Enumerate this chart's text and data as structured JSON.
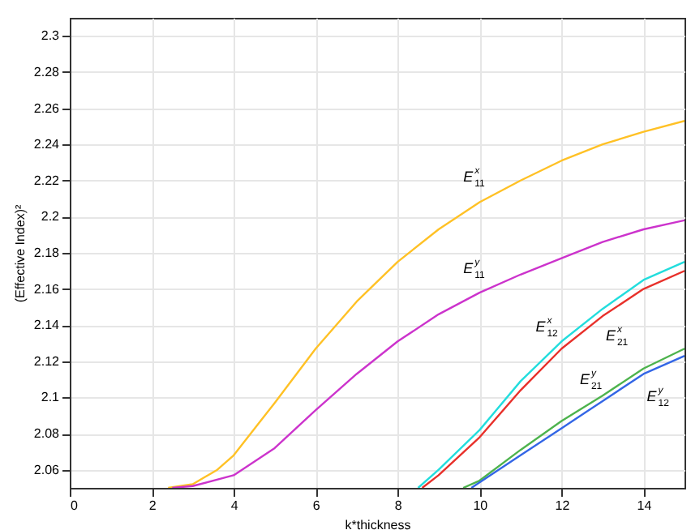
{
  "chart_data": {
    "type": "line",
    "xlabel": "k*thickness",
    "ylabel": "(Effective Index)²",
    "xlim": [
      0,
      15
    ],
    "ylim": [
      2.05,
      2.31
    ],
    "xticks": [
      0,
      2,
      4,
      6,
      8,
      10,
      12,
      14
    ],
    "yticks": [
      2.06,
      2.08,
      2.1,
      2.12,
      2.14,
      2.16,
      2.18,
      2.2,
      2.22,
      2.24,
      2.26,
      2.28,
      2.3
    ],
    "grid": true,
    "line_style": "solid",
    "series": [
      {
        "name": "E$^{x}$$_{11}$",
        "color": "#ffc125",
        "x": [
          2.4,
          3,
          3.6,
          4,
          5,
          6,
          7,
          8,
          9,
          10,
          11,
          12,
          13,
          14,
          15
        ],
        "values": [
          2.05,
          2.052,
          2.06,
          2.068,
          2.097,
          2.127,
          2.153,
          2.175,
          2.193,
          2.208,
          2.22,
          2.231,
          2.24,
          2.247,
          2.253
        ]
      },
      {
        "name": "E$^{y}$$_{11}$",
        "color": "#cc33cc",
        "x": [
          2.5,
          3,
          4,
          5,
          6,
          7,
          8,
          9,
          10,
          11,
          12,
          13,
          14,
          15
        ],
        "values": [
          2.05,
          2.051,
          2.057,
          2.072,
          2.093,
          2.113,
          2.131,
          2.146,
          2.158,
          2.168,
          2.177,
          2.186,
          2.193,
          2.198
        ]
      },
      {
        "name": "E$^{x}$$_{12}$",
        "color": "#22dddd",
        "x": [
          8.5,
          9,
          10,
          11,
          12,
          13,
          14,
          15
        ],
        "values": [
          2.05,
          2.06,
          2.082,
          2.109,
          2.131,
          2.149,
          2.165,
          2.175
        ]
      },
      {
        "name": "E$^{x}$$_{21}$",
        "color": "#e8302a",
        "x": [
          8.6,
          9,
          10,
          11,
          12,
          13,
          14,
          15
        ],
        "values": [
          2.05,
          2.057,
          2.078,
          2.104,
          2.127,
          2.145,
          2.16,
          2.17
        ]
      },
      {
        "name": "E$^{y}$$_{21}$",
        "color": "#4db34d",
        "x": [
          9.6,
          10,
          11,
          12,
          13,
          14,
          15
        ],
        "values": [
          2.05,
          2.054,
          2.071,
          2.087,
          2.101,
          2.116,
          2.127
        ]
      },
      {
        "name": "E$^{y}$$_{12}$",
        "color": "#3366e6",
        "x": [
          9.8,
          10,
          11,
          12,
          13,
          14,
          15
        ],
        "values": [
          2.05,
          2.053,
          2.068,
          2.083,
          2.098,
          2.113,
          2.123
        ]
      }
    ]
  }
}
